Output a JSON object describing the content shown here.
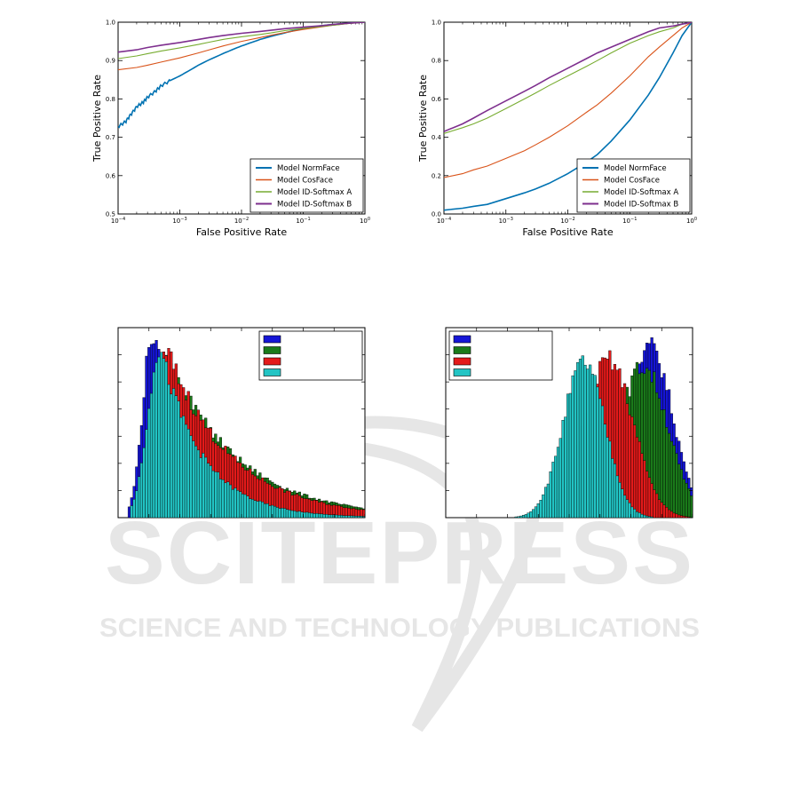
{
  "watermark": {
    "main": "SCITEPRESS",
    "sub": "SCIENCE AND TECHNOLOGY PUBLICATIONS",
    "color": "#e6e6e6"
  },
  "chart_data": [
    {
      "type": "line",
      "xlabel": "False Positive Rate",
      "ylabel": "True Positive Rate",
      "xscale": "log",
      "xlim": [
        0.0001,
        1
      ],
      "ylim": [
        0.5,
        1.0
      ],
      "x_ticks": [
        0.0001,
        0.001,
        0.01,
        0.1,
        1
      ],
      "x_tick_labels": [
        "10^-4",
        "10^-3",
        "10^-2",
        "10^-1",
        "10^0"
      ],
      "y_ticks": [
        0.5,
        0.6,
        0.7,
        0.8,
        0.9,
        1.0
      ],
      "y_tick_labels": [
        "0.5",
        "0.6",
        "0.7",
        "0.8",
        "0.9",
        "1.0"
      ],
      "legend_position": "lower-right",
      "series": [
        {
          "name": "Model NormFace",
          "color": "#0072b2",
          "width": 1.6,
          "x": [
            0.0001,
            0.00013,
            0.00016,
            0.0002,
            0.00025,
            0.0003,
            0.0004,
            0.0005,
            0.0007,
            0.001,
            0.0015,
            0.002,
            0.003,
            0.005,
            0.007,
            0.01,
            0.015,
            0.02,
            0.03,
            0.05,
            0.07,
            0.1,
            0.15,
            0.2,
            0.3,
            0.5,
            0.7,
            1
          ],
          "y": [
            0.728,
            0.74,
            0.76,
            0.78,
            0.79,
            0.805,
            0.82,
            0.835,
            0.848,
            0.86,
            0.876,
            0.888,
            0.902,
            0.918,
            0.928,
            0.938,
            0.948,
            0.955,
            0.963,
            0.972,
            0.978,
            0.983,
            0.988,
            0.991,
            0.994,
            0.997,
            0.999,
            1.0
          ]
        },
        {
          "name": "Model CosFace",
          "color": "#d95319",
          "width": 1.1,
          "x": [
            0.0001,
            0.0002,
            0.0003,
            0.0005,
            0.001,
            0.002,
            0.003,
            0.005,
            0.01,
            0.02,
            0.03,
            0.05,
            0.1,
            0.2,
            0.3,
            0.5,
            1
          ],
          "y": [
            0.876,
            0.882,
            0.888,
            0.896,
            0.907,
            0.92,
            0.928,
            0.938,
            0.95,
            0.96,
            0.966,
            0.973,
            0.981,
            0.988,
            0.992,
            0.996,
            1.0
          ]
        },
        {
          "name": "Model ID-Softmax A",
          "color": "#77ac30",
          "width": 1.1,
          "x": [
            0.0001,
            0.0002,
            0.0003,
            0.0005,
            0.001,
            0.002,
            0.003,
            0.005,
            0.01,
            0.02,
            0.03,
            0.05,
            0.1,
            0.2,
            0.3,
            0.5,
            1
          ],
          "y": [
            0.905,
            0.912,
            0.918,
            0.925,
            0.933,
            0.942,
            0.948,
            0.955,
            0.962,
            0.968,
            0.972,
            0.978,
            0.984,
            0.989,
            0.992,
            0.996,
            1.0
          ]
        },
        {
          "name": "Model ID-Softmax B",
          "color": "#7e2f8e",
          "width": 1.6,
          "x": [
            0.0001,
            0.0002,
            0.0003,
            0.0005,
            0.001,
            0.002,
            0.003,
            0.005,
            0.01,
            0.02,
            0.03,
            0.05,
            0.1,
            0.2,
            0.3,
            0.5,
            1
          ],
          "y": [
            0.922,
            0.928,
            0.934,
            0.94,
            0.947,
            0.955,
            0.96,
            0.965,
            0.971,
            0.976,
            0.979,
            0.983,
            0.987,
            0.991,
            0.994,
            0.997,
            1.0
          ]
        }
      ]
    },
    {
      "type": "line",
      "xlabel": "False Positive Rate",
      "ylabel": "True Positive Rate",
      "xscale": "log",
      "xlim": [
        0.0001,
        1
      ],
      "ylim": [
        0.0,
        1.0
      ],
      "x_ticks": [
        0.0001,
        0.001,
        0.01,
        0.1,
        1
      ],
      "x_tick_labels": [
        "10^-4",
        "10^-3",
        "10^-2",
        "10^-1",
        "10^0"
      ],
      "y_ticks": [
        0.0,
        0.2,
        0.4,
        0.6,
        0.8,
        1.0
      ],
      "y_tick_labels": [
        "0.0",
        "0.2",
        "0.4",
        "0.6",
        "0.8",
        "1.0"
      ],
      "legend_position": "lower-right",
      "series": [
        {
          "name": "Model NormFace",
          "color": "#0072b2",
          "width": 1.6,
          "x": [
            0.0001,
            0.0002,
            0.0003,
            0.0005,
            0.001,
            0.002,
            0.003,
            0.005,
            0.01,
            0.02,
            0.03,
            0.05,
            0.1,
            0.2,
            0.3,
            0.5,
            0.7,
            1
          ],
          "y": [
            0.02,
            0.03,
            0.04,
            0.05,
            0.08,
            0.11,
            0.13,
            0.16,
            0.21,
            0.27,
            0.31,
            0.38,
            0.49,
            0.62,
            0.71,
            0.84,
            0.93,
            1.0
          ]
        },
        {
          "name": "Model CosFace",
          "color": "#d95319",
          "width": 1.1,
          "x": [
            0.0001,
            0.0002,
            0.0003,
            0.0005,
            0.001,
            0.002,
            0.003,
            0.005,
            0.01,
            0.02,
            0.03,
            0.05,
            0.1,
            0.2,
            0.3,
            0.5,
            0.7,
            1
          ],
          "y": [
            0.19,
            0.21,
            0.23,
            0.25,
            0.29,
            0.33,
            0.36,
            0.4,
            0.46,
            0.53,
            0.57,
            0.63,
            0.72,
            0.82,
            0.87,
            0.93,
            0.97,
            1.0
          ]
        },
        {
          "name": "Model ID-Softmax A",
          "color": "#77ac30",
          "width": 1.1,
          "x": [
            0.0001,
            0.0002,
            0.0003,
            0.0005,
            0.001,
            0.002,
            0.003,
            0.005,
            0.01,
            0.02,
            0.03,
            0.05,
            0.1,
            0.2,
            0.3,
            0.5,
            0.7,
            1
          ],
          "y": [
            0.42,
            0.45,
            0.47,
            0.5,
            0.55,
            0.6,
            0.63,
            0.67,
            0.72,
            0.77,
            0.8,
            0.84,
            0.89,
            0.93,
            0.95,
            0.97,
            0.99,
            1.0
          ]
        },
        {
          "name": "Model ID-Softmax B",
          "color": "#7e2f8e",
          "width": 1.6,
          "x": [
            0.0001,
            0.0002,
            0.0003,
            0.0005,
            0.001,
            0.002,
            0.003,
            0.005,
            0.01,
            0.02,
            0.03,
            0.05,
            0.1,
            0.2,
            0.3,
            0.5,
            0.7,
            1
          ],
          "y": [
            0.43,
            0.47,
            0.5,
            0.54,
            0.59,
            0.64,
            0.67,
            0.71,
            0.76,
            0.81,
            0.84,
            0.87,
            0.91,
            0.95,
            0.97,
            0.98,
            0.99,
            1.0
          ]
        }
      ]
    },
    {
      "type": "bar",
      "xlim": [
        0,
        1
      ],
      "ylim": [
        0,
        1
      ],
      "legend_position": "top-right",
      "bins": 100,
      "series": [
        {
          "color": "#1515d6",
          "shape": "skewed",
          "peak": 0.14,
          "left_sd": 0.04,
          "right_tau": 0.16,
          "height": 1.0,
          "start": 0.04
        },
        {
          "color": "#1a7a1a",
          "shape": "skewed",
          "peak": 0.2,
          "left_sd": 0.05,
          "right_tau": 0.28,
          "height": 0.88,
          "start": 0.07
        },
        {
          "color": "#e31a1a",
          "shape": "skewed",
          "peak": 0.2,
          "left_sd": 0.05,
          "right_tau": 0.26,
          "height": 0.9,
          "start": 0.07
        },
        {
          "color": "#22c4c4",
          "shape": "skewed",
          "peak": 0.17,
          "left_sd": 0.05,
          "right_tau": 0.17,
          "height": 0.92,
          "start": 0.05
        }
      ]
    },
    {
      "type": "bar",
      "xlim": [
        0,
        1
      ],
      "ylim": [
        0,
        1
      ],
      "legend_position": "top-left",
      "bins": 100,
      "series": [
        {
          "color": "#1515d6",
          "shape": "gauss",
          "peak": 0.83,
          "sd": 0.09,
          "height": 0.92
        },
        {
          "color": "#1a7a1a",
          "shape": "gauss",
          "peak": 0.8,
          "sd": 0.1,
          "height": 0.82
        },
        {
          "color": "#e31a1a",
          "shape": "gauss",
          "peak": 0.66,
          "sd": 0.1,
          "height": 0.85
        },
        {
          "color": "#22c4c4",
          "shape": "gauss",
          "peak": 0.56,
          "sd": 0.085,
          "height": 0.84
        }
      ]
    }
  ]
}
